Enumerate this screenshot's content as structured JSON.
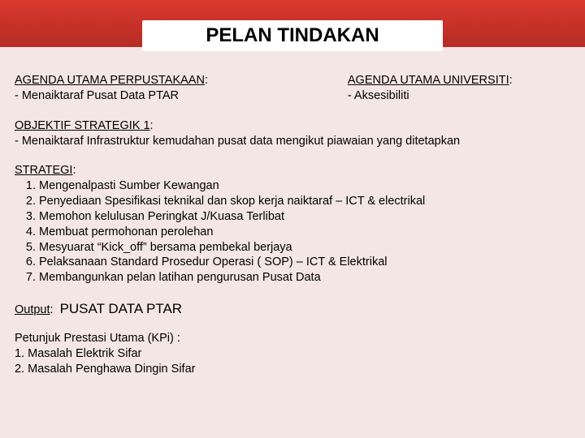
{
  "colors": {
    "header_gradient_top": "#d9382e",
    "header_gradient_bottom": "#b52c24",
    "page_bg": "#f5e6e6",
    "text": "#000000",
    "pill_bg": "#ffffff"
  },
  "title": "PELAN TINDAKAN",
  "agenda_left": {
    "heading": "AGENDA UTAMA PERPUSTAKAAN",
    "colon": ":",
    "item": "- Menaiktaraf Pusat Data PTAR"
  },
  "agenda_right": {
    "heading": "AGENDA UTAMA UNIVERSITI",
    "colon": ":",
    "item": "- Aksesibiliti"
  },
  "objektif": {
    "heading": "OBJEKTIF STRATEGIK 1",
    "colon": ":",
    "item": "- Menaiktaraf Infrastruktur kemudahan pusat data mengikut piawaian yang ditetapkan"
  },
  "strategi": {
    "heading": "STRATEGI",
    "colon": ":",
    "items": [
      "Mengenalpasti Sumber Kewangan",
      "Penyediaan Spesifikasi teknikal dan skop kerja naiktaraf – ICT & electrikal",
      "Memohon kelulusan Peringkat J/Kuasa Terlibat",
      "Membuat permohonan perolehan",
      "Mesyuarat “Kick_off” bersama pembekal berjaya",
      "Pelaksanaan Standard Prosedur Operasi ( SOP) – ICT & Elektrikal",
      "Membangunkan pelan latihan pengurusan Pusat Data"
    ]
  },
  "output": {
    "label": "Output",
    "colon": ":",
    "value": "PUSAT DATA PTAR"
  },
  "kpi": {
    "heading": "Petunjuk Prestasi Utama (KPi) :",
    "items": [
      "1.  Masalah Elektrik Sifar",
      "2. Masalah Penghawa Dingin Sifar"
    ]
  }
}
